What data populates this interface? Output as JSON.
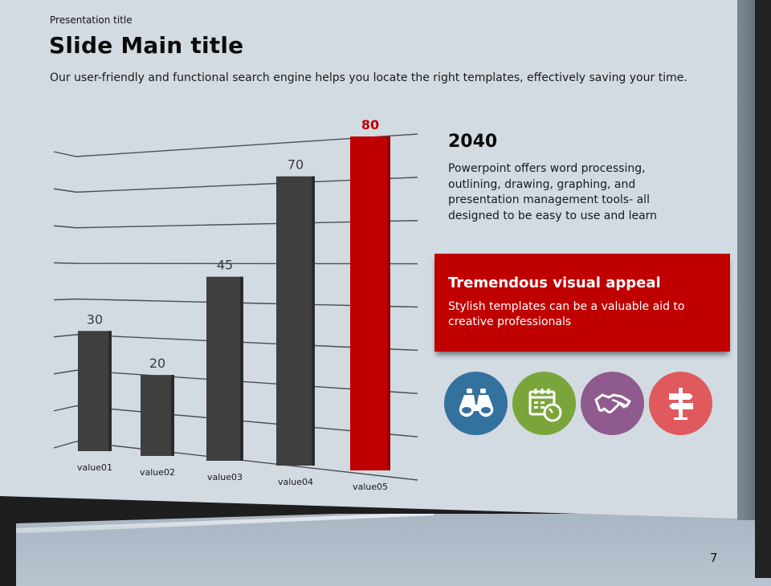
{
  "slide": {
    "presentation_title": "Presentation  title",
    "main_title": "Slide Main title",
    "subtitle": "Our user-friendly and functional search engine helps you locate the right templates, effectively saving your time.",
    "page_number": "7"
  },
  "info": {
    "year": "2040",
    "description": "Powerpoint offers word processing, outlining, drawing, graphing, and presentation management tools- all designed to be easy to use and learn"
  },
  "callout": {
    "heading": "Tremendous visual appeal",
    "body": "Stylish templates can be a valuable aid to creative professionals",
    "color": "#c00000"
  },
  "icons": [
    {
      "name": "binoculars-icon",
      "color": "#33719f"
    },
    {
      "name": "calendar-clock-icon",
      "color": "#7aa53a"
    },
    {
      "name": "handshake-icon",
      "color": "#8f5a8e"
    },
    {
      "name": "signpost-icon",
      "color": "#e0595c"
    }
  ],
  "chart_data": {
    "type": "bar",
    "title": "",
    "xlabel": "",
    "ylabel": "",
    "categories": [
      "value01",
      "value02",
      "value03",
      "value04",
      "value05"
    ],
    "values": [
      30,
      20,
      45,
      70,
      80
    ],
    "highlight_index": 4,
    "colors": {
      "default": "#3f3f3f",
      "highlight": "#c00000",
      "highlight_label": "#c00000",
      "label": "#3a3a3a"
    },
    "ylim": [
      0,
      80
    ],
    "gridlines": 9,
    "grid": true,
    "legend": "none"
  }
}
